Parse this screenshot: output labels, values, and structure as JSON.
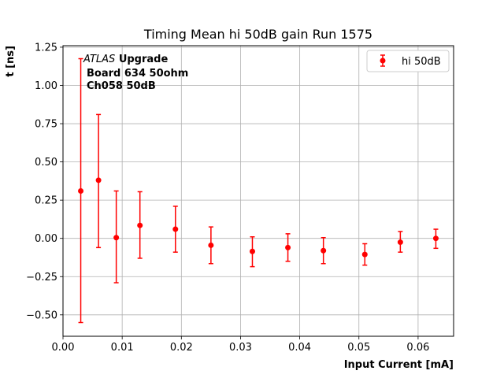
{
  "chart_data": {
    "type": "scatter",
    "title": "Timing Mean hi 50dB gain Run 1575",
    "xlabel": "Input Current [mA]",
    "ylabel": "t [ns]",
    "xlim": [
      0.0,
      0.066
    ],
    "ylim": [
      -0.64,
      1.26
    ],
    "xticks": [
      "0.00",
      "0.01",
      "0.02",
      "0.03",
      "0.04",
      "0.05",
      "0.06"
    ],
    "xtick_values": [
      0.0,
      0.01,
      0.02,
      0.03,
      0.04,
      0.05,
      0.06
    ],
    "yticks": [
      "−0.50",
      "−0.25",
      "0.00",
      "0.25",
      "0.50",
      "0.75",
      "1.00",
      "1.25"
    ],
    "ytick_values": [
      -0.5,
      -0.25,
      0.0,
      0.25,
      0.5,
      0.75,
      1.0,
      1.25
    ],
    "grid": true,
    "legend_position": "top-right",
    "color": "#ff0000",
    "series": [
      {
        "name": "hi 50dB",
        "x": [
          0.003,
          0.006,
          0.009,
          0.013,
          0.019,
          0.025,
          0.032,
          0.038,
          0.044,
          0.051,
          0.057,
          0.063
        ],
        "y": [
          0.31,
          0.38,
          0.005,
          0.085,
          0.06,
          -0.045,
          -0.085,
          -0.06,
          -0.08,
          -0.105,
          -0.025,
          0.0
        ],
        "yerr_low": [
          -0.55,
          -0.06,
          -0.29,
          -0.13,
          -0.09,
          -0.165,
          -0.185,
          -0.15,
          -0.165,
          -0.175,
          -0.09,
          -0.065
        ],
        "yerr_high": [
          1.175,
          0.81,
          0.31,
          0.305,
          0.21,
          0.075,
          0.01,
          0.03,
          0.005,
          -0.035,
          0.045,
          0.06
        ]
      }
    ],
    "annotation": {
      "line1_italic": "ATLAS",
      "line1_bold": "Upgrade",
      "line2": "Board 634 50ohm",
      "line3": "Ch058 50dB"
    }
  }
}
